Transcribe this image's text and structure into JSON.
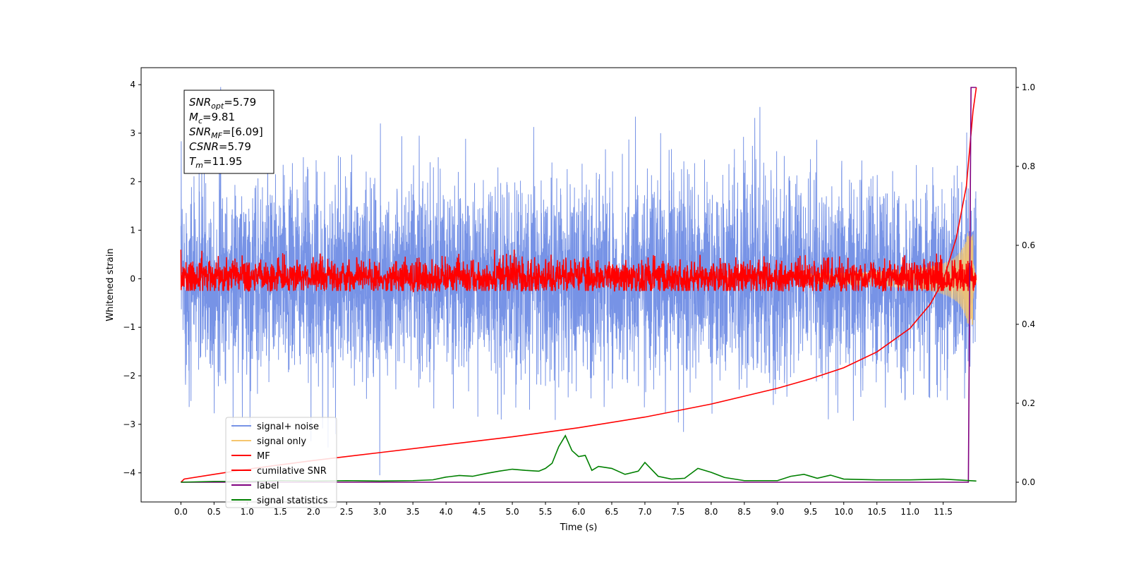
{
  "chart_data": {
    "type": "line",
    "title": "",
    "xlabel": "Time (s)",
    "ylabel": "Whitened strain",
    "xlim": [
      -0.6,
      12.6
    ],
    "ylim": [
      -4.6,
      4.35
    ],
    "y2lim": [
      -0.05,
      1.05
    ],
    "grid": false,
    "legend_position": "lower-left",
    "x_ticks": [
      "0.0",
      "0.5",
      "1.0",
      "1.5",
      "2.0",
      "2.5",
      "3.0",
      "3.5",
      "4.0",
      "4.5",
      "5.0",
      "5.5",
      "6.0",
      "6.5",
      "7.0",
      "7.5",
      "8.0",
      "8.5",
      "9.0",
      "9.5",
      "10.0",
      "10.5",
      "11.0",
      "11.5"
    ],
    "y_ticks": [
      "4",
      "3",
      "2",
      "1",
      "0",
      "−1",
      "−2",
      "−3",
      "−4"
    ],
    "y2_ticks": [
      "1.0",
      "0.8",
      "0.6",
      "0.4",
      "0.2",
      "0.0"
    ],
    "annotation": {
      "lines": [
        {
          "var": "SNR",
          "sub": "opt",
          "text": "=5.79"
        },
        {
          "var": "M",
          "sub": "c",
          "text": "=9.81"
        },
        {
          "var": "SNR",
          "sub": "MF",
          "text": "=[6.09]"
        },
        {
          "var": "CSNR",
          "sub": "",
          "text": "=5.79"
        },
        {
          "var": "T",
          "sub": "m",
          "text": "=11.95"
        }
      ]
    },
    "series": [
      {
        "name": "signal+ noise",
        "color": "#7793e6",
        "axis": "left",
        "noise_amplitude": 1.0,
        "extreme_min": -4.05,
        "extreme_max": 3.95
      },
      {
        "name": "signal only",
        "color": "#f5c66e",
        "axis": "left",
        "chirp_end": 11.95,
        "peak_amplitude": 0.95
      },
      {
        "name": "MF",
        "color": "#ff0000",
        "axis": "left",
        "noise_amplitude": 0.18
      },
      {
        "name": "cumilative SNR",
        "color": "#ff0000",
        "axis": "right",
        "x": [
          0.0,
          0.05,
          0.5,
          1.0,
          2.0,
          3.0,
          4.0,
          5.0,
          6.0,
          7.0,
          8.0,
          9.0,
          9.5,
          10.0,
          10.5,
          11.0,
          11.3,
          11.5,
          11.7,
          11.85,
          11.95,
          12.0
        ],
        "values": [
          0.0,
          0.008,
          0.02,
          0.033,
          0.055,
          0.075,
          0.095,
          0.115,
          0.138,
          0.165,
          0.198,
          0.238,
          0.262,
          0.29,
          0.33,
          0.39,
          0.45,
          0.51,
          0.62,
          0.75,
          0.94,
          1.0
        ]
      },
      {
        "name": "label",
        "color": "#800080",
        "axis": "right",
        "x": [
          0.0,
          11.88,
          11.92,
          12.0
        ],
        "values": [
          0.0,
          0.0,
          1.0,
          1.0
        ]
      },
      {
        "name": "signal statistics",
        "color": "#008000",
        "axis": "right",
        "x": [
          0.0,
          0.5,
          1.0,
          1.5,
          2.0,
          2.5,
          3.0,
          3.5,
          3.8,
          4.0,
          4.2,
          4.4,
          4.6,
          4.8,
          5.0,
          5.2,
          5.4,
          5.5,
          5.6,
          5.7,
          5.8,
          5.9,
          6.0,
          6.1,
          6.2,
          6.3,
          6.5,
          6.7,
          6.9,
          7.0,
          7.2,
          7.4,
          7.6,
          7.8,
          8.0,
          8.2,
          8.5,
          9.0,
          9.2,
          9.4,
          9.6,
          9.8,
          10.0,
          10.5,
          11.0,
          11.5,
          12.0
        ],
        "values": [
          0.0,
          0.002,
          0.002,
          0.004,
          0.003,
          0.004,
          0.003,
          0.004,
          0.006,
          0.013,
          0.017,
          0.015,
          0.022,
          0.028,
          0.033,
          0.03,
          0.028,
          0.035,
          0.048,
          0.09,
          0.118,
          0.08,
          0.065,
          0.068,
          0.03,
          0.04,
          0.035,
          0.02,
          0.028,
          0.05,
          0.015,
          0.008,
          0.01,
          0.035,
          0.025,
          0.012,
          0.004,
          0.004,
          0.015,
          0.02,
          0.01,
          0.018,
          0.008,
          0.006,
          0.006,
          0.008,
          0.003
        ]
      }
    ]
  }
}
